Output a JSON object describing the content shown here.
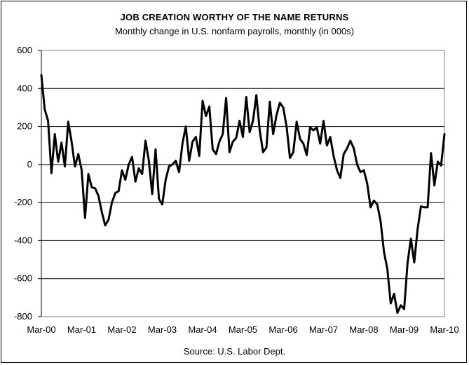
{
  "chart_data": {
    "type": "line",
    "title": "JOB CREATION WORTHY OF THE NAME RETURNS",
    "subtitle": "Monthly change in U.S. nonfarm payrolls, monthly (in 000s)",
    "source": "Source: U.S. Labor Dept.",
    "xlabel": "",
    "ylabel": "",
    "ylim": [
      -800,
      600
    ],
    "yticks": [
      "600",
      "400",
      "200",
      "0",
      "-200",
      "-400",
      "-600",
      "-800"
    ],
    "ytick_values": [
      600,
      400,
      200,
      0,
      -200,
      -400,
      -600,
      -800
    ],
    "xticks": [
      "Mar-00",
      "Mar-01",
      "Mar-02",
      "Mar-03",
      "Mar-04",
      "Mar-05",
      "Mar-06",
      "Mar-07",
      "Mar-08",
      "Mar-09",
      "Mar-10"
    ],
    "grid": true,
    "line_color": "#000000",
    "series": [
      {
        "values": [
          470,
          290,
          230,
          -45,
          160,
          15,
          115,
          -10,
          225,
          120,
          -10,
          55,
          -30,
          -280,
          -50,
          -120,
          -125,
          -165,
          -250,
          -320,
          -290,
          -200,
          -150,
          -140,
          -30,
          -80,
          0,
          40,
          -90,
          -20,
          -50,
          125,
          20,
          -155,
          80,
          -180,
          -210,
          -80,
          -10,
          0,
          20,
          -40,
          110,
          200,
          20,
          120,
          145,
          45,
          335,
          255,
          305,
          80,
          55,
          120,
          160,
          350,
          65,
          120,
          140,
          230,
          145,
          355,
          170,
          230,
          365,
          180,
          65,
          90,
          330,
          160,
          260,
          325,
          300,
          200,
          35,
          65,
          225,
          135,
          110,
          50,
          195,
          180,
          195,
          110,
          230,
          100,
          145,
          45,
          -30,
          -70,
          55,
          85,
          125,
          85,
          0,
          -40,
          -30,
          -100,
          -225,
          -190,
          -210,
          -300,
          -460,
          -550,
          -730,
          -680,
          -780,
          -740,
          -760,
          -520,
          -390,
          -515,
          -340,
          -220,
          -225,
          -225,
          60,
          -110,
          15,
          -5,
          160
        ]
      }
    ]
  }
}
